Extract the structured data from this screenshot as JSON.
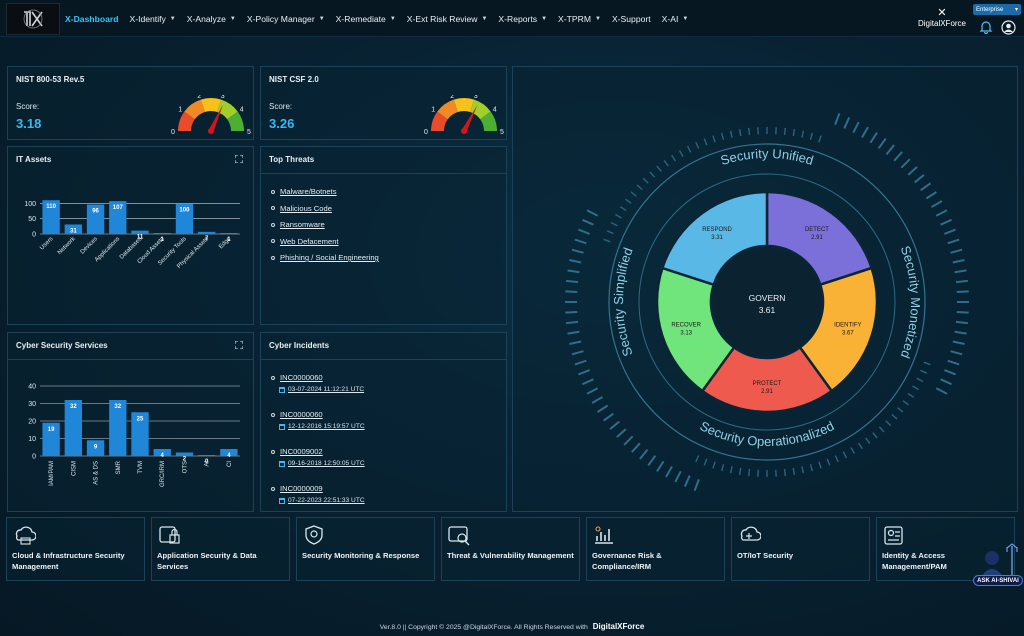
{
  "nav": {
    "items": [
      {
        "label": "X-Dashboard",
        "dropdown": false,
        "active": true
      },
      {
        "label": "X-Identify",
        "dropdown": true
      },
      {
        "label": "X-Analyze",
        "dropdown": true
      },
      {
        "label": "X-Policy Manager",
        "dropdown": true
      },
      {
        "label": "X-Remediate",
        "dropdown": true
      },
      {
        "label": "X-Ext Risk Review",
        "dropdown": true
      },
      {
        "label": "X-Reports",
        "dropdown": true
      },
      {
        "label": "X-TPRM",
        "dropdown": true
      },
      {
        "label": "X-Support",
        "dropdown": false
      },
      {
        "label": "X-AI",
        "dropdown": true
      }
    ],
    "brand": "DigitalXForce",
    "edition": "Enterprise"
  },
  "nist": {
    "title": "NIST 800-53 Rev.5",
    "score_label": "Score:",
    "score": "3.18",
    "gauge_value": 3.18
  },
  "csf": {
    "title": "NIST CSF 2.0",
    "score_label": "Score:",
    "score": "3.26",
    "gauge_value": 3.26
  },
  "gauge_ticks": [
    "0",
    "1",
    "2",
    "3",
    "4",
    "5"
  ],
  "it_assets": {
    "title": "IT Assets",
    "chart_data": {
      "type": "bar",
      "categories": [
        "Users",
        "Network",
        "Devices",
        "Applications",
        "Databases",
        "Cloud Assets",
        "Security Tools",
        "Physical Assets",
        "Edge"
      ],
      "values": [
        110,
        31,
        96,
        107,
        11,
        1,
        100,
        7,
        1
      ],
      "yticks": [
        "100",
        "50",
        "0"
      ],
      "ylim": [
        0,
        140
      ],
      "grid": true,
      "color": "#1f86d8"
    }
  },
  "top_threats": {
    "title": "Top Threats",
    "items": [
      "Malware/Botnets",
      "Malicious Code",
      "Ransomware",
      "Web Defacement",
      "Phishing / Social Engineering"
    ]
  },
  "cyber_services": {
    "title": "Cyber Security Services",
    "chart_data": {
      "type": "bar",
      "categories": [
        "IAM/PAM",
        "CISM",
        "AS & DS",
        "SMR",
        "TVM",
        "GRC/IRM",
        "OTS",
        "AI",
        "CI"
      ],
      "values": [
        19,
        32,
        9,
        32,
        25,
        4,
        2,
        0,
        4
      ],
      "yticks": [
        "40",
        "30",
        "20",
        "10",
        "0"
      ],
      "ylim": [
        0,
        40
      ],
      "grid": true,
      "color": "#1f86d8"
    }
  },
  "incidents": {
    "title": "Cyber Incidents",
    "items": [
      {
        "id": "INC0000060",
        "date": "03-07-2024 11:12:21 UTC"
      },
      {
        "id": "INC0000060",
        "date": "12-12-2016 15:19:57 UTC"
      },
      {
        "id": "INC0009002",
        "date": "09-16-2018 12:50:05 UTC"
      },
      {
        "id": "INC0000009",
        "date": "07-22-2023 22:51:33 UTC"
      }
    ]
  },
  "wheel": {
    "ring_labels": {
      "top": "Security Unified",
      "right": "Security Monetized",
      "bottom": "Security Operationalized",
      "left": "Security Simplified"
    },
    "center": {
      "label": "GOVERN",
      "value": "3.61"
    },
    "chart_data": {
      "type": "pie",
      "segments": [
        {
          "label": "DETECT",
          "value": "2.91",
          "color": "#7b6fd9"
        },
        {
          "label": "IDENTIFY",
          "value": "3.67",
          "color": "#f9b236"
        },
        {
          "label": "PROTECT",
          "value": "2.91",
          "color": "#ee5a4d"
        },
        {
          "label": "RECOVER",
          "value": "3.13",
          "color": "#6fe57b"
        },
        {
          "label": "RESPOND",
          "value": "3.31",
          "color": "#5ab8e6"
        }
      ]
    }
  },
  "tiles": [
    {
      "label": "Cloud & Infrastructure Security Management",
      "icon": "cloud-server-icon"
    },
    {
      "label": "Application Security & Data Services",
      "icon": "app-lock-icon"
    },
    {
      "label": "Security Monitoring & Response",
      "icon": "monitor-shield-icon"
    },
    {
      "label": "Threat & Vulnerability Management",
      "icon": "threat-scan-icon"
    },
    {
      "label": "Governance Risk & Compliance/IRM",
      "icon": "governance-chart-icon"
    },
    {
      "label": "OT/IoT Security",
      "icon": "iot-cloud-icon"
    },
    {
      "label": "Identity & Access Management/PAM",
      "icon": "identity-card-icon"
    }
  ],
  "assistant": {
    "label": "ASK AI-SHIVAI"
  },
  "footer": {
    "text": "Ver.8.0 || Copyright © 2025 @DigitalXForce. All Rights Reserved with",
    "brand": "DigitalXForce"
  }
}
